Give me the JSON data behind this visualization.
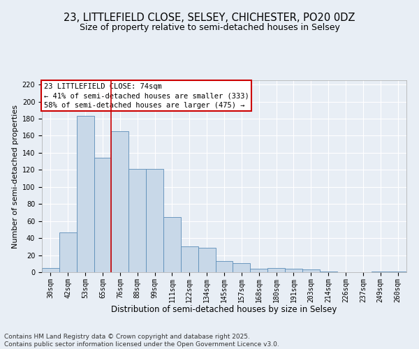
{
  "title1": "23, LITTLEFIELD CLOSE, SELSEY, CHICHESTER, PO20 0DZ",
  "title2": "Size of property relative to semi-detached houses in Selsey",
  "xlabel": "Distribution of semi-detached houses by size in Selsey",
  "ylabel": "Number of semi-detached properties",
  "categories": [
    "30sqm",
    "42sqm",
    "53sqm",
    "65sqm",
    "76sqm",
    "88sqm",
    "99sqm",
    "111sqm",
    "122sqm",
    "134sqm",
    "145sqm",
    "157sqm",
    "168sqm",
    "180sqm",
    "191sqm",
    "203sqm",
    "214sqm",
    "226sqm",
    "237sqm",
    "249sqm",
    "260sqm"
  ],
  "values": [
    5,
    47,
    183,
    134,
    165,
    121,
    121,
    65,
    30,
    29,
    13,
    11,
    4,
    5,
    4,
    3,
    1,
    0,
    0,
    1,
    1
  ],
  "bar_color": "#c8d8e8",
  "bar_edge_color": "#5b8db8",
  "vline_x": 3.5,
  "vline_color": "#cc0000",
  "annotation_text": "23 LITTLEFIELD CLOSE: 74sqm\n← 41% of semi-detached houses are smaller (333)\n58% of semi-detached houses are larger (475) →",
  "annotation_box_color": "#ffffff",
  "annotation_box_edge_color": "#cc0000",
  "footnote1": "Contains HM Land Registry data © Crown copyright and database right 2025.",
  "footnote2": "Contains public sector information licensed under the Open Government Licence v3.0.",
  "bg_color": "#e8eef5",
  "plot_bg_color": "#e8eef5",
  "grid_color": "#ffffff",
  "ylim": [
    0,
    225
  ],
  "yticks": [
    0,
    20,
    40,
    60,
    80,
    100,
    120,
    140,
    160,
    180,
    200,
    220
  ],
  "title1_fontsize": 10.5,
  "title2_fontsize": 9,
  "xlabel_fontsize": 8.5,
  "ylabel_fontsize": 8,
  "tick_fontsize": 7,
  "annot_fontsize": 7.5,
  "footnote_fontsize": 6.5
}
